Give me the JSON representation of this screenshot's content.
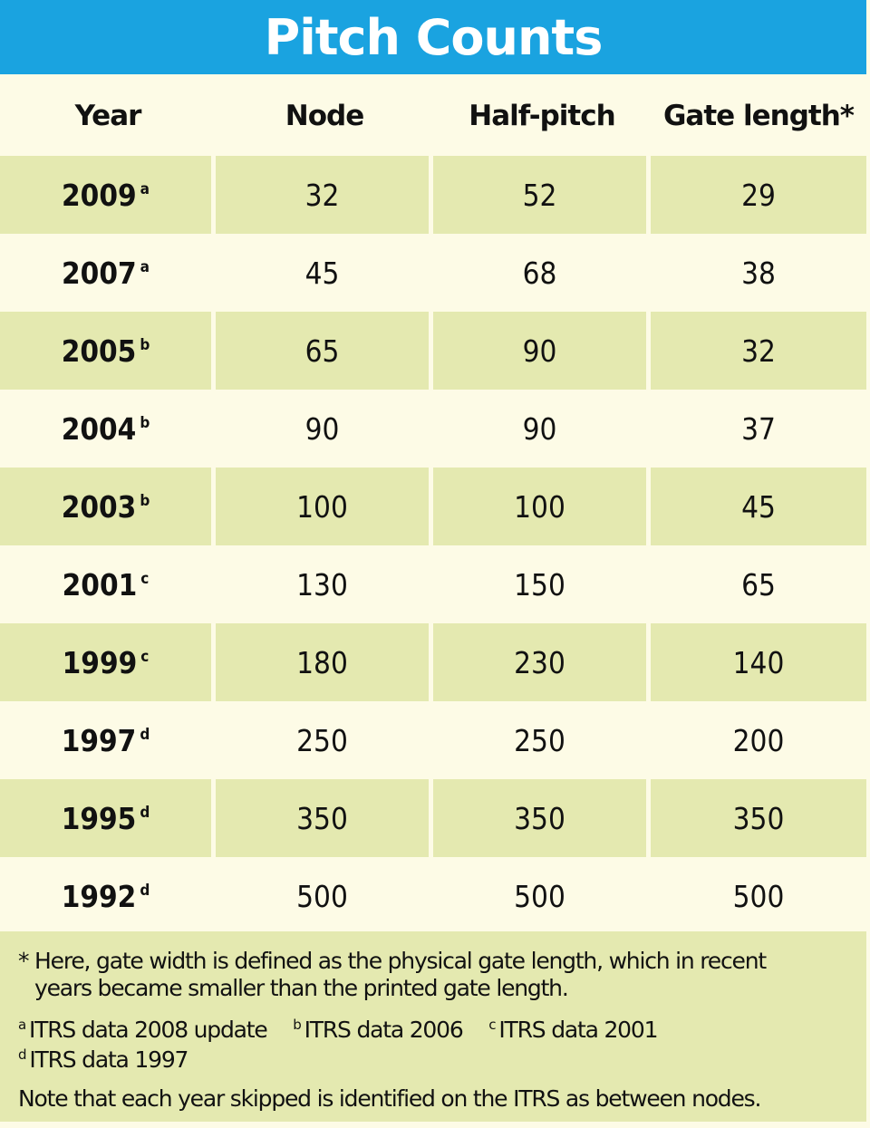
{
  "title": "Pitch Counts",
  "columns": [
    "Year",
    "Node",
    "Half-pitch",
    "Gate length*"
  ],
  "rows": [
    {
      "year": "2009",
      "mark": "a",
      "node": "32",
      "half_pitch": "52",
      "gate_length": "29"
    },
    {
      "year": "2007",
      "mark": "a",
      "node": "45",
      "half_pitch": "68",
      "gate_length": "38"
    },
    {
      "year": "2005",
      "mark": "b",
      "node": "65",
      "half_pitch": "90",
      "gate_length": "32"
    },
    {
      "year": "2004",
      "mark": "b",
      "node": "90",
      "half_pitch": "90",
      "gate_length": "37"
    },
    {
      "year": "2003",
      "mark": "b",
      "node": "100",
      "half_pitch": "100",
      "gate_length": "45"
    },
    {
      "year": "2001",
      "mark": "c",
      "node": "130",
      "half_pitch": "150",
      "gate_length": "65"
    },
    {
      "year": "1999",
      "mark": "c",
      "node": "180",
      "half_pitch": "230",
      "gate_length": "140"
    },
    {
      "year": "1997",
      "mark": "d",
      "node": "250",
      "half_pitch": "250",
      "gate_length": "200"
    },
    {
      "year": "1995",
      "mark": "d",
      "node": "350",
      "half_pitch": "350",
      "gate_length": "350"
    },
    {
      "year": "1992",
      "mark": "d",
      "node": "500",
      "half_pitch": "500",
      "gate_length": "500"
    }
  ],
  "notes": {
    "star_line1": "* Here, gate width is defined as the physical gate length, which in recent",
    "star_line2": "years became smaller than the printed gate length.",
    "sources": [
      {
        "mark": "a",
        "text": "ITRS data 2008 update"
      },
      {
        "mark": "b",
        "text": "ITRS data 2006"
      },
      {
        "mark": "c",
        "text": "ITRS data 2001"
      },
      {
        "mark": "d",
        "text": "ITRS data 1997"
      }
    ],
    "final": "Note that each year skipped is identified on the ITRS as between nodes."
  },
  "colors": {
    "title_bar": "#1aa3e0",
    "row_shaded": "#e4e9b0",
    "row_light": "#fdfbe6"
  }
}
